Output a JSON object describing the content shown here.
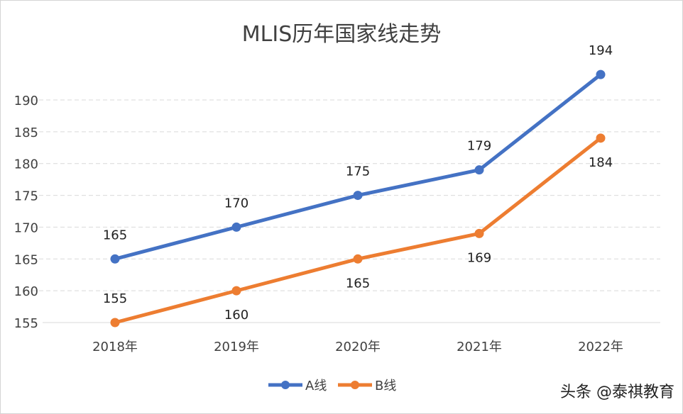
{
  "chart_data": {
    "type": "line",
    "title": "MLIS历年国家线走势",
    "categories": [
      "2018年",
      "2019年",
      "2020年",
      "2021年",
      "2022年"
    ],
    "series": [
      {
        "name": "A线",
        "values": [
          165,
          170,
          175,
          179,
          194
        ],
        "color": "#4472c4",
        "label_pos": [
          "above",
          "above",
          "above",
          "above",
          "above"
        ]
      },
      {
        "name": "B线",
        "values": [
          155,
          160,
          165,
          169,
          184
        ],
        "color": "#ed7d31",
        "label_pos": [
          "above",
          "below",
          "below",
          "below",
          "below"
        ]
      }
    ],
    "yticks": [
      155,
      160,
      165,
      170,
      175,
      180,
      185,
      190
    ],
    "ylim": [
      155,
      190
    ],
    "grid": true,
    "legend": "bottom",
    "xlabel": "",
    "ylabel": ""
  },
  "watermark": "头条 @泰祺教育"
}
